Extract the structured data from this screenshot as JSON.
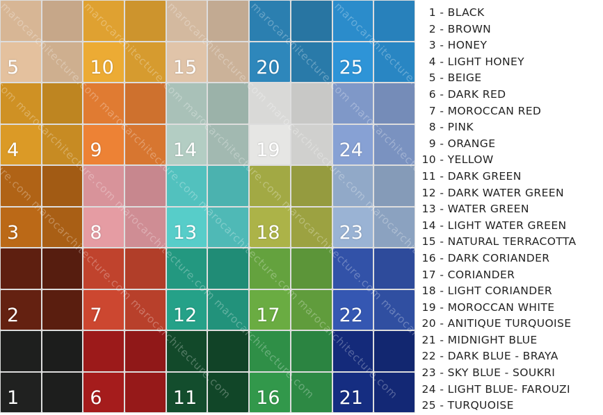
{
  "watermark": "marocarchitecture.com",
  "tiles": [
    {
      "number": "1",
      "name": "BLACK",
      "color": "#1e1f1e"
    },
    {
      "number": "2",
      "name": "BROWN",
      "color": "#5e1f10"
    },
    {
      "number": "3",
      "name": "HONEY",
      "color": "#b06316"
    },
    {
      "number": "4",
      "name": "LIGHT HONEY",
      "color": "#cf9124"
    },
    {
      "number": "5",
      "name": "BEIGE",
      "color": "#d7b695"
    },
    {
      "number": "6",
      "name": "DARK RED",
      "color": "#9c1a1a"
    },
    {
      "number": "7",
      "name": "MOROCCAN RED",
      "color": "#c0432d"
    },
    {
      "number": "8",
      "name": "PINK",
      "color": "#d8939a"
    },
    {
      "number": "9",
      "name": "ORANGE",
      "color": "#e07b32"
    },
    {
      "number": "10",
      "name": "YELLOW",
      "color": "#dfa131"
    },
    {
      "number": "11",
      "name": "DARK GREEN",
      "color": "#12492a"
    },
    {
      "number": "12",
      "name": "DARK WATER GREEN",
      "color": "#239880"
    },
    {
      "number": "13",
      "name": "WATER GREEN",
      "color": "#52c1be"
    },
    {
      "number": "14",
      "name": "LIGHT WATER GREEN",
      "color": "#a9c1b8"
    },
    {
      "number": "15",
      "name": "NATURAL TERRACOTTA",
      "color": "#d3b99f"
    },
    {
      "number": "16",
      "name": "DARK CORIANDER",
      "color": "#2f8f47"
    },
    {
      "number": "17",
      "name": "CORIANDER",
      "color": "#64a23e"
    },
    {
      "number": "18",
      "name": "LIGHT CORIANDER",
      "color": "#a2a944"
    },
    {
      "number": "19",
      "name": "MOROCCAN WHITE",
      "color": "#d9d9d7"
    },
    {
      "number": "20",
      "name": "ANITIQUE TURQUOISE",
      "color": "#2b7fb0"
    },
    {
      "number": "21",
      "name": "MIDNIGHT BLUE",
      "color": "#142a7a"
    },
    {
      "number": "22",
      "name": "DARK BLUE - BRAYA",
      "color": "#3252a8"
    },
    {
      "number": "23",
      "name": "SKY BLUE - SOUKRI",
      "color": "#91a9c8"
    },
    {
      "number": "24",
      "name": "LIGHT BLUE- FAROUZI",
      "color": "#7f98c8"
    },
    {
      "number": "25",
      "name": "TURQUOISE",
      "color": "#2b8ccb"
    }
  ]
}
